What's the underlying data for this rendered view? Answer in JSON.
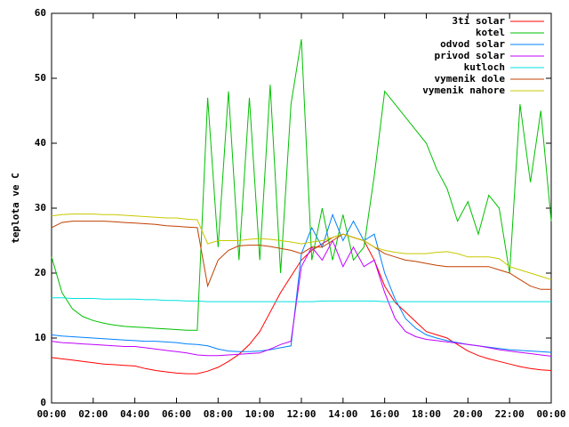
{
  "chart_data": {
    "type": "line",
    "ylabel": "teplota ve C",
    "x": [
      0,
      0.5,
      1,
      1.5,
      2,
      2.5,
      3,
      3.5,
      4,
      4.5,
      5,
      5.5,
      6,
      6.5,
      7,
      7.5,
      8,
      8.5,
      9,
      9.5,
      10,
      10.5,
      11,
      11.5,
      12,
      12.5,
      13,
      13.5,
      14,
      14.5,
      15,
      15.5,
      16,
      16.5,
      17,
      17.5,
      18,
      18.5,
      19,
      19.5,
      20,
      20.5,
      21,
      21.5,
      22,
      22.5,
      23,
      23.5,
      24
    ],
    "xlim": [
      0,
      24
    ],
    "xticks": [
      {
        "value": 0,
        "label": "00:00"
      },
      {
        "value": 2,
        "label": "02:00"
      },
      {
        "value": 4,
        "label": "04:00"
      },
      {
        "value": 6,
        "label": "06:00"
      },
      {
        "value": 8,
        "label": "08:00"
      },
      {
        "value": 10,
        "label": "10:00"
      },
      {
        "value": 12,
        "label": "12:00"
      },
      {
        "value": 14,
        "label": "14:00"
      },
      {
        "value": 16,
        "label": "16:00"
      },
      {
        "value": 18,
        "label": "18:00"
      },
      {
        "value": 20,
        "label": "20:00"
      },
      {
        "value": 22,
        "label": "22:00"
      },
      {
        "value": 24,
        "label": "00:00"
      }
    ],
    "ylim": [
      0,
      60
    ],
    "yticks": [
      0,
      10,
      20,
      30,
      40,
      50,
      60
    ],
    "legend": "top-right",
    "series": [
      {
        "name": "3ti solar",
        "color": "#ff0000",
        "values": [
          7,
          6.8,
          6.6,
          6.4,
          6.2,
          6,
          5.9,
          5.8,
          5.7,
          5.3,
          5,
          4.8,
          4.6,
          4.5,
          4.5,
          4.9,
          5.5,
          6.4,
          7.5,
          9,
          11,
          14,
          17,
          19.5,
          22,
          23.5,
          24.5,
          25.5,
          26,
          25.5,
          25,
          22,
          18,
          15.5,
          14,
          12.5,
          11,
          10.5,
          10,
          9,
          8,
          7.3,
          6.8,
          6.4,
          6,
          5.6,
          5.3,
          5.1,
          5
        ]
      },
      {
        "name": "kotel",
        "color": "#00c000",
        "values": [
          22.5,
          17,
          14.5,
          13.3,
          12.7,
          12.3,
          12,
          11.8,
          11.7,
          11.6,
          11.5,
          11.4,
          11.3,
          11.2,
          11.2,
          47,
          24,
          48,
          22,
          47,
          22,
          49,
          20,
          46,
          56,
          22,
          30,
          22,
          29,
          22,
          24,
          35,
          48,
          46,
          44,
          42,
          40,
          36,
          33,
          28,
          31,
          26,
          32,
          30,
          20,
          46,
          34,
          45,
          28
        ]
      },
      {
        "name": "odvod solar",
        "color": "#0080ff",
        "values": [
          10.5,
          10.3,
          10.2,
          10.1,
          10,
          9.9,
          9.8,
          9.7,
          9.6,
          9.5,
          9.5,
          9.4,
          9.3,
          9.1,
          9,
          8.8,
          8.3,
          8,
          7.9,
          7.9,
          8,
          8.2,
          8.5,
          8.8,
          23,
          27,
          24,
          29,
          25,
          28,
          25,
          26,
          20,
          16,
          13,
          11.5,
          10.5,
          10,
          9.6,
          9.3,
          9,
          8.8,
          8.6,
          8.4,
          8.2,
          8.1,
          8,
          7.9,
          7.8
        ]
      },
      {
        "name": "privod solar",
        "color": "#c000ff",
        "values": [
          9.5,
          9.3,
          9.2,
          9.1,
          9,
          8.9,
          8.8,
          8.7,
          8.7,
          8.5,
          8.3,
          8.1,
          7.9,
          7.7,
          7.4,
          7.3,
          7.3,
          7.4,
          7.5,
          7.6,
          7.7,
          8.3,
          9,
          9.5,
          21,
          24,
          22,
          25,
          21,
          24,
          21,
          22,
          17,
          13,
          11,
          10.2,
          9.8,
          9.6,
          9.4,
          9.2,
          9,
          8.8,
          8.5,
          8.2,
          8,
          7.8,
          7.6,
          7.4,
          7.2
        ]
      },
      {
        "name": "kutloch",
        "color": "#00e0e0",
        "values": [
          16.2,
          16.2,
          16.1,
          16.1,
          16.1,
          16,
          16,
          16,
          16,
          15.9,
          15.9,
          15.8,
          15.8,
          15.7,
          15.7,
          15.6,
          15.6,
          15.6,
          15.6,
          15.6,
          15.6,
          15.6,
          15.6,
          15.6,
          15.6,
          15.6,
          15.7,
          15.7,
          15.7,
          15.7,
          15.7,
          15.7,
          15.6,
          15.6,
          15.6,
          15.6,
          15.6,
          15.6,
          15.6,
          15.6,
          15.6,
          15.6,
          15.6,
          15.6,
          15.6,
          15.6,
          15.6,
          15.6,
          15.6
        ]
      },
      {
        "name": "vymenik dole",
        "color": "#c04000",
        "values": [
          27,
          27.8,
          28,
          28,
          28,
          28,
          27.9,
          27.8,
          27.7,
          27.6,
          27.5,
          27.3,
          27.2,
          27.1,
          27,
          18,
          22,
          23.5,
          24.2,
          24.3,
          24.3,
          24.1,
          23.8,
          23.5,
          23,
          24,
          24,
          25,
          26,
          25.5,
          25,
          24,
          23,
          22.5,
          22,
          21.8,
          21.5,
          21.2,
          21,
          21,
          21,
          21,
          21,
          20.5,
          20,
          19,
          18,
          17.5,
          17.5
        ]
      },
      {
        "name": "vymenik nahore",
        "color": "#c8c800",
        "values": [
          28.8,
          29,
          29.1,
          29.1,
          29.1,
          29,
          29,
          28.9,
          28.8,
          28.7,
          28.6,
          28.5,
          28.5,
          28.3,
          28.2,
          24.5,
          25,
          25,
          25,
          25.2,
          25.3,
          25.2,
          25,
          24.8,
          24.5,
          24.8,
          25,
          25.5,
          26,
          25.5,
          25,
          24,
          23.5,
          23.2,
          23,
          23,
          23,
          23.2,
          23.3,
          23,
          22.5,
          22.5,
          22.5,
          22.2,
          21,
          20.5,
          20,
          19.5,
          19
        ]
      }
    ]
  }
}
